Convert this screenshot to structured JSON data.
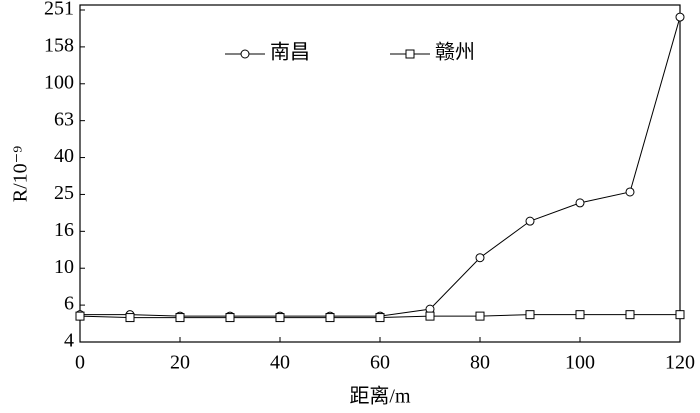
{
  "chart_data": {
    "type": "line",
    "x_label": "距离/m",
    "y_label": "R/10⁻⁹",
    "x": [
      0,
      10,
      20,
      30,
      40,
      50,
      60,
      70,
      80,
      90,
      100,
      110,
      120
    ],
    "series": [
      {
        "name": "南昌",
        "color": "#000000",
        "marker": "circle",
        "values": [
          5.6,
          5.6,
          5.5,
          5.5,
          5.5,
          5.5,
          5.5,
          6.0,
          11.4,
          18.0,
          22.6,
          25.9,
          230
        ]
      },
      {
        "name": "赣州",
        "color": "#000000",
        "marker": "square",
        "values": [
          5.5,
          5.4,
          5.4,
          5.4,
          5.4,
          5.4,
          5.4,
          5.5,
          5.5,
          5.6,
          5.6,
          5.6,
          5.6
        ]
      }
    ],
    "xlim": [
      0,
      120
    ],
    "xticks": [
      0,
      20,
      40,
      60,
      80,
      100,
      120
    ],
    "ylim": [
      3.981,
      251.2
    ],
    "log_y": true,
    "yticks": [
      {
        "value": 3.981,
        "label": "4"
      },
      {
        "value": 6.31,
        "label": "6"
      },
      10,
      {
        "value": 15.85,
        "label": "16"
      },
      {
        "value": 25.12,
        "label": "25"
      },
      {
        "value": 39.81,
        "label": "40"
      },
      {
        "value": 63.1,
        "label": "63"
      },
      100,
      {
        "value": 158.5,
        "label": "158"
      },
      {
        "value": 251.2,
        "label": "251"
      }
    ],
    "legend": "top"
  }
}
